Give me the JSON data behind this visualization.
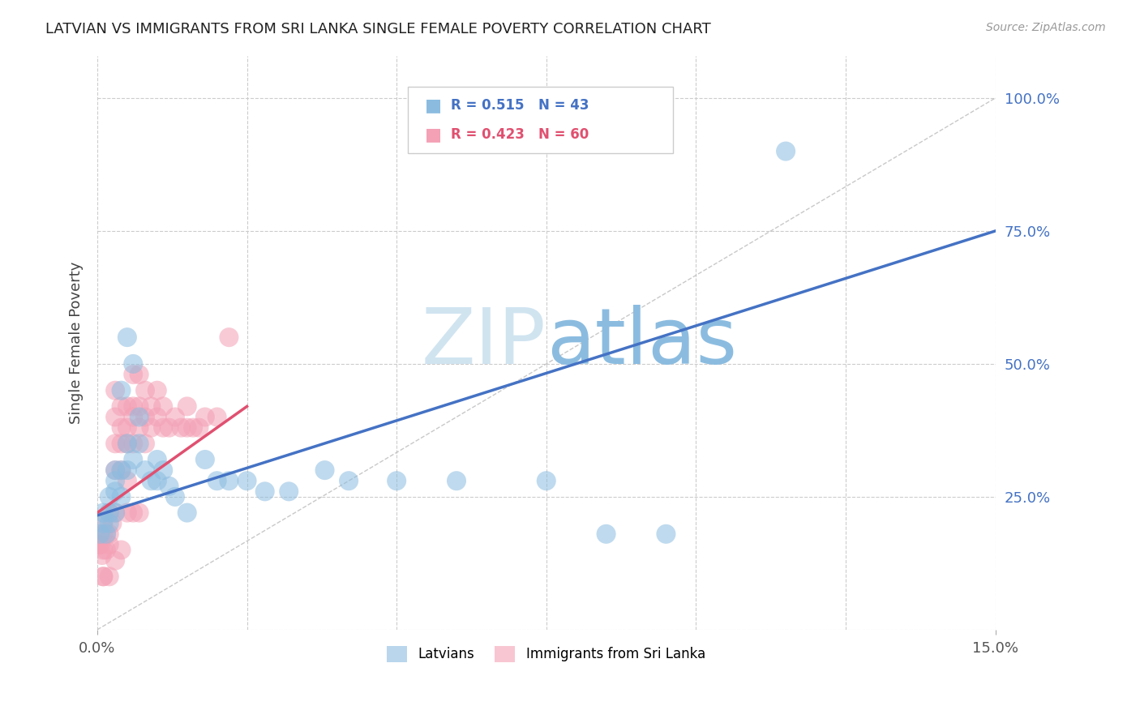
{
  "title": "LATVIAN VS IMMIGRANTS FROM SRI LANKA SINGLE FEMALE POVERTY CORRELATION CHART",
  "source": "Source: ZipAtlas.com",
  "ylabel": "Single Female Poverty",
  "xlim": [
    0.0,
    0.15
  ],
  "ylim": [
    0.0,
    1.08
  ],
  "xticks": [
    0.0,
    0.15
  ],
  "xticklabels": [
    "0.0%",
    "15.0%"
  ],
  "yticks_right": [
    0.25,
    0.5,
    0.75,
    1.0
  ],
  "yticklabels_right": [
    "25.0%",
    "50.0%",
    "75.0%",
    "100.0%"
  ],
  "latvian_R": "0.515",
  "latvian_N": "43",
  "srilanka_R": "0.423",
  "srilanka_N": "60",
  "latvian_color": "#8bbce0",
  "srilanka_color": "#f4a0b5",
  "latvian_trend_color": "#4472C4",
  "srilanka_trend_color": "#E05070",
  "watermark_zip_color": "#d0e4f0",
  "watermark_atlas_color": "#8bbce0",
  "background_color": "#ffffff",
  "grid_color": "#cccccc",
  "diag_color": "#bbbbbb",
  "latvians_x": [
    0.0005,
    0.001,
    0.001,
    0.0015,
    0.002,
    0.002,
    0.002,
    0.003,
    0.003,
    0.003,
    0.003,
    0.004,
    0.004,
    0.004,
    0.005,
    0.005,
    0.005,
    0.006,
    0.006,
    0.007,
    0.007,
    0.008,
    0.009,
    0.01,
    0.01,
    0.011,
    0.012,
    0.013,
    0.015,
    0.018,
    0.02,
    0.022,
    0.025,
    0.028,
    0.032,
    0.038,
    0.042,
    0.05,
    0.06,
    0.075,
    0.085,
    0.095,
    0.115
  ],
  "latvians_y": [
    0.18,
    0.2,
    0.22,
    0.18,
    0.2,
    0.22,
    0.25,
    0.22,
    0.26,
    0.28,
    0.3,
    0.25,
    0.3,
    0.45,
    0.3,
    0.35,
    0.55,
    0.32,
    0.5,
    0.35,
    0.4,
    0.3,
    0.28,
    0.28,
    0.32,
    0.3,
    0.27,
    0.25,
    0.22,
    0.32,
    0.28,
    0.28,
    0.28,
    0.26,
    0.26,
    0.3,
    0.28,
    0.28,
    0.28,
    0.28,
    0.18,
    0.18,
    0.9
  ],
  "srilanka_x": [
    0.0002,
    0.0003,
    0.0005,
    0.0008,
    0.001,
    0.001,
    0.001,
    0.0015,
    0.0015,
    0.002,
    0.002,
    0.002,
    0.0025,
    0.003,
    0.003,
    0.003,
    0.003,
    0.003,
    0.004,
    0.004,
    0.004,
    0.004,
    0.005,
    0.005,
    0.005,
    0.005,
    0.006,
    0.006,
    0.006,
    0.006,
    0.007,
    0.007,
    0.007,
    0.008,
    0.008,
    0.008,
    0.009,
    0.009,
    0.01,
    0.01,
    0.011,
    0.011,
    0.012,
    0.013,
    0.014,
    0.015,
    0.015,
    0.016,
    0.017,
    0.018,
    0.02,
    0.022,
    0.001,
    0.001,
    0.002,
    0.003,
    0.004,
    0.005,
    0.006,
    0.007
  ],
  "srilanka_y": [
    0.16,
    0.16,
    0.16,
    0.14,
    0.15,
    0.18,
    0.2,
    0.15,
    0.18,
    0.16,
    0.18,
    0.22,
    0.2,
    0.22,
    0.3,
    0.35,
    0.4,
    0.45,
    0.3,
    0.35,
    0.38,
    0.42,
    0.28,
    0.35,
    0.38,
    0.42,
    0.35,
    0.4,
    0.42,
    0.48,
    0.38,
    0.42,
    0.48,
    0.35,
    0.4,
    0.45,
    0.38,
    0.42,
    0.4,
    0.45,
    0.38,
    0.42,
    0.38,
    0.4,
    0.38,
    0.38,
    0.42,
    0.38,
    0.38,
    0.4,
    0.4,
    0.55,
    0.1,
    0.1,
    0.1,
    0.13,
    0.15,
    0.22,
    0.22,
    0.22
  ],
  "lv_trend_x0": 0.0,
  "lv_trend_y0": 0.215,
  "lv_trend_x1": 0.15,
  "lv_trend_y1": 0.75,
  "sl_trend_x0": 0.0,
  "sl_trend_y0": 0.22,
  "sl_trend_x1": 0.025,
  "sl_trend_y1": 0.42
}
